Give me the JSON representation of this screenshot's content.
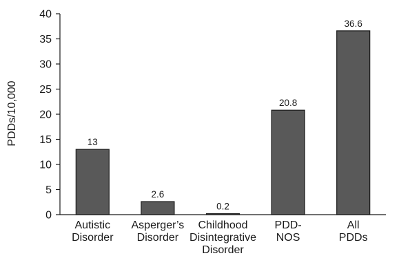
{
  "chart_data": {
    "type": "bar",
    "categories": [
      [
        "Autistic",
        "Disorder"
      ],
      [
        "Asperger’s",
        "Disorder"
      ],
      [
        "Childhood",
        "Disintegrative",
        "Disorder"
      ],
      [
        "PDD-",
        "NOS"
      ],
      [
        "All",
        "PDDs"
      ]
    ],
    "values": [
      13,
      2.6,
      0.2,
      20.8,
      36.6
    ],
    "data_labels": [
      "13",
      "2.6",
      "0.2",
      "20.8",
      "36.6"
    ],
    "ylabel": "PDDs/10,000",
    "xlabel": "",
    "ylim": [
      0,
      40
    ],
    "yticks": [
      0,
      5,
      10,
      15,
      20,
      25,
      30,
      35,
      40
    ],
    "grid": false,
    "bar_color": "#595959",
    "bar_outline_color": "#1a1a1a"
  }
}
